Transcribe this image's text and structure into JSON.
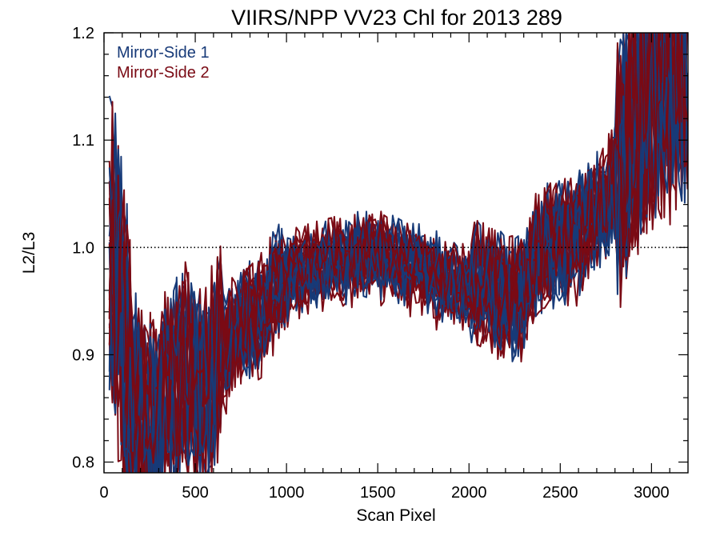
{
  "chart_data": {
    "type": "line",
    "title": "VIIRS/NPP VV23 Chl for 2013 289",
    "xlabel": "Scan Pixel",
    "ylabel": "L2/L3",
    "xlim": [
      0,
      3200
    ],
    "ylim": [
      0.79,
      1.2
    ],
    "x_ticks": [
      0,
      500,
      1000,
      1500,
      2000,
      2500,
      3000
    ],
    "y_ticks": [
      0.8,
      0.9,
      1.0,
      1.1,
      1.2
    ],
    "x_tick_labels": [
      "0",
      "500",
      "1000",
      "1500",
      "2000",
      "2500",
      "3000"
    ],
    "y_tick_labels": [
      "0.8",
      "0.9",
      "1.0",
      "1.1",
      "1.2"
    ],
    "reference_line": {
      "y": 1.0,
      "style": "dotted"
    },
    "legend_position": "top-left",
    "colors": {
      "Mirror-Side 1": "#173a78",
      "Mirror-Side 2": "#7a0a14"
    },
    "series": [
      {
        "name": "Mirror-Side 1",
        "line_count": 14,
        "x": [
          30,
          150,
          250,
          350,
          450,
          550,
          650,
          750,
          850,
          950,
          1050,
          1150,
          1250,
          1350,
          1450,
          1550,
          1650,
          1750,
          1850,
          1950,
          2050,
          2150,
          2250,
          2350,
          2450,
          2550,
          2650,
          2750,
          2850,
          2950,
          3050,
          3150
        ],
        "values": [
          1.01,
          0.86,
          0.83,
          0.86,
          0.88,
          0.86,
          0.9,
          0.92,
          0.93,
          0.96,
          0.97,
          0.975,
          0.98,
          0.985,
          0.99,
          0.985,
          0.98,
          0.975,
          0.965,
          0.96,
          0.96,
          0.955,
          0.94,
          0.98,
          1.0,
          1.0,
          1.02,
          1.03,
          1.08,
          1.12,
          1.15,
          1.16
        ]
      },
      {
        "name": "Mirror-Side 2",
        "line_count": 14,
        "x": [
          30,
          150,
          250,
          350,
          450,
          550,
          650,
          750,
          850,
          950,
          1050,
          1150,
          1250,
          1350,
          1450,
          1550,
          1650,
          1750,
          1850,
          1950,
          2050,
          2150,
          2250,
          2350,
          2450,
          2550,
          2650,
          2750,
          2850,
          2950,
          3050,
          3150
        ],
        "values": [
          1.0,
          0.85,
          0.84,
          0.86,
          0.88,
          0.87,
          0.9,
          0.92,
          0.935,
          0.96,
          0.975,
          0.98,
          0.985,
          0.985,
          0.99,
          0.985,
          0.98,
          0.97,
          0.965,
          0.96,
          0.96,
          0.955,
          0.945,
          0.98,
          1.0,
          1.0,
          1.02,
          1.04,
          1.08,
          1.12,
          1.15,
          1.16
        ]
      }
    ]
  }
}
